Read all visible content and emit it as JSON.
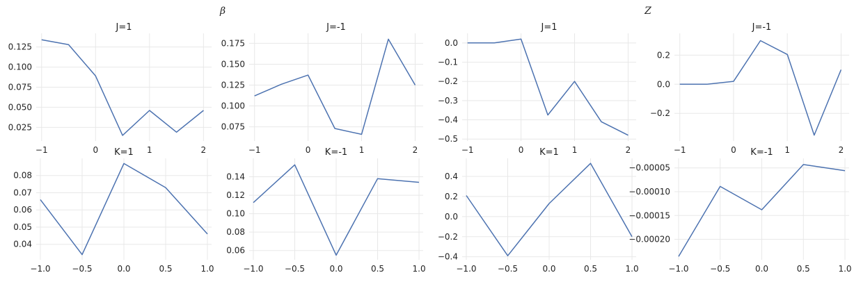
{
  "figure_titles": {
    "left": "β",
    "right": "Z"
  },
  "colors": {
    "line": "#4c72b0",
    "grid": "#e8e8e8",
    "text": "#222222"
  },
  "chart_data": [
    {
      "type": "line",
      "title": "J=1",
      "x": [
        -1,
        -0.5,
        0,
        0.5,
        1,
        1.5,
        2
      ],
      "values": [
        0.134,
        0.128,
        0.089,
        0.015,
        0.046,
        0.019,
        0.046
      ],
      "xlim": [
        -1.1,
        2.15
      ],
      "ylim": [
        0.008,
        0.142
      ],
      "xticks": [
        -1,
        0,
        1,
        2
      ],
      "yticks": [
        0.025,
        0.05,
        0.075,
        0.1,
        0.125
      ],
      "xtick_labels": [
        "−1",
        "0",
        "1",
        "2"
      ],
      "ytick_labels": [
        "0.025",
        "0.050",
        "0.075",
        "0.100",
        "0.125"
      ],
      "grid": true
    },
    {
      "type": "line",
      "title": "J=-1",
      "x": [
        -1,
        -0.5,
        0,
        0.5,
        1,
        1.5,
        2
      ],
      "values": [
        0.112,
        0.126,
        0.137,
        0.073,
        0.066,
        0.18,
        0.125
      ],
      "xlim": [
        -1.1,
        2.15
      ],
      "ylim": [
        0.058,
        0.187
      ],
      "xticks": [
        -1,
        0,
        1,
        2
      ],
      "yticks": [
        0.075,
        0.1,
        0.125,
        0.15,
        0.175
      ],
      "xtick_labels": [
        "−1",
        "0",
        "1",
        "2"
      ],
      "ytick_labels": [
        "0.075",
        "0.100",
        "0.125",
        "0.150",
        "0.175"
      ],
      "grid": true
    },
    {
      "type": "line",
      "title": "J=1",
      "x": [
        -1,
        -0.5,
        0,
        0.5,
        1,
        1.5,
        2
      ],
      "values": [
        0.0,
        0.0,
        0.02,
        -0.375,
        -0.2,
        -0.41,
        -0.48
      ],
      "xlim": [
        -1.1,
        2.15
      ],
      "ylim": [
        -0.51,
        0.05
      ],
      "xticks": [
        -1,
        0,
        1,
        2
      ],
      "yticks": [
        0.0,
        -0.1,
        -0.2,
        -0.3,
        -0.4,
        -0.5
      ],
      "xtick_labels": [
        "−1",
        "0",
        "1",
        "2"
      ],
      "ytick_labels": [
        "0.0",
        "−0.1",
        "−0.2",
        "−0.3",
        "−0.4",
        "−0.5"
      ],
      "grid": true
    },
    {
      "type": "line",
      "title": "J=-1",
      "x": [
        -1,
        -0.5,
        0,
        0.5,
        1,
        1.5,
        2
      ],
      "values": [
        0.0,
        0.0,
        0.02,
        0.3,
        0.205,
        -0.35,
        0.1
      ],
      "xlim": [
        -1.1,
        2.15
      ],
      "ylim": [
        -0.39,
        0.35
      ],
      "xticks": [
        -1,
        0,
        1,
        2
      ],
      "yticks": [
        0.2,
        0.0,
        -0.2
      ],
      "xtick_labels": [
        "−1",
        "0",
        "1",
        "2"
      ],
      "ytick_labels": [
        "0.2",
        "0.0",
        "−0.2"
      ],
      "grid": true
    },
    {
      "type": "line",
      "title": "K=1",
      "x": [
        -1,
        -0.5,
        0,
        0.5,
        1
      ],
      "values": [
        0.066,
        0.034,
        0.087,
        0.073,
        0.046
      ],
      "xlim": [
        -1.05,
        1.05
      ],
      "ylim": [
        0.031,
        0.09
      ],
      "xticks": [
        -1,
        -0.5,
        0,
        0.5,
        1
      ],
      "yticks": [
        0.04,
        0.05,
        0.06,
        0.07,
        0.08
      ],
      "xtick_labels": [
        "−1.0",
        "−0.5",
        "0.0",
        "0.5",
        "1.0"
      ],
      "ytick_labels": [
        "0.04",
        "0.05",
        "0.06",
        "0.07",
        "0.08"
      ],
      "grid": true
    },
    {
      "type": "line",
      "title": "K=-1",
      "x": [
        -1,
        -0.5,
        0,
        0.5,
        1
      ],
      "values": [
        0.112,
        0.153,
        0.055,
        0.138,
        0.134
      ],
      "xlim": [
        -1.05,
        1.05
      ],
      "ylim": [
        0.05,
        0.16
      ],
      "xticks": [
        -1,
        -0.5,
        0,
        0.5,
        1
      ],
      "yticks": [
        0.06,
        0.08,
        0.1,
        0.12,
        0.14
      ],
      "xtick_labels": [
        "−1.0",
        "−0.5",
        "0.0",
        "0.5",
        "1.0"
      ],
      "ytick_labels": [
        "0.06",
        "0.08",
        "0.10",
        "0.12",
        "0.14"
      ],
      "grid": true
    },
    {
      "type": "line",
      "title": "K=1",
      "x": [
        -1,
        -0.5,
        0,
        0.5,
        1
      ],
      "values": [
        0.21,
        -0.39,
        0.13,
        0.53,
        -0.2
      ],
      "xlim": [
        -1.05,
        1.05
      ],
      "ylim": [
        -0.43,
        0.58
      ],
      "xticks": [
        -1,
        -0.5,
        0,
        0.5,
        1
      ],
      "yticks": [
        0.4,
        0.2,
        0.0,
        -0.2,
        -0.4
      ],
      "xtick_labels": [
        "−1.0",
        "−0.5",
        "0.0",
        "0.5",
        "1.0"
      ],
      "ytick_labels": [
        "0.4",
        "0.2",
        "0.0",
        "−0.2",
        "−0.4"
      ],
      "grid": true
    },
    {
      "type": "line",
      "title": "K=-1",
      "x": [
        -1,
        -0.5,
        0,
        0.5,
        1
      ],
      "values": [
        -0.000236,
        -8.9e-05,
        -0.000138,
        -4.3e-05,
        -5.6e-05
      ],
      "xlim": [
        -1.05,
        1.05
      ],
      "ylim": [
        -0.000243,
        -3e-05
      ],
      "xticks": [
        -1,
        -0.5,
        0,
        0.5,
        1
      ],
      "yticks": [
        -5e-05,
        -0.0001,
        -0.00015,
        -0.0002
      ],
      "xtick_labels": [
        "−1.0",
        "−0.5",
        "0.0",
        "0.5",
        "1.0"
      ],
      "ytick_labels": [
        "−0.00005",
        "−0.00010",
        "−0.00015",
        "−0.00020"
      ],
      "grid": true
    }
  ]
}
